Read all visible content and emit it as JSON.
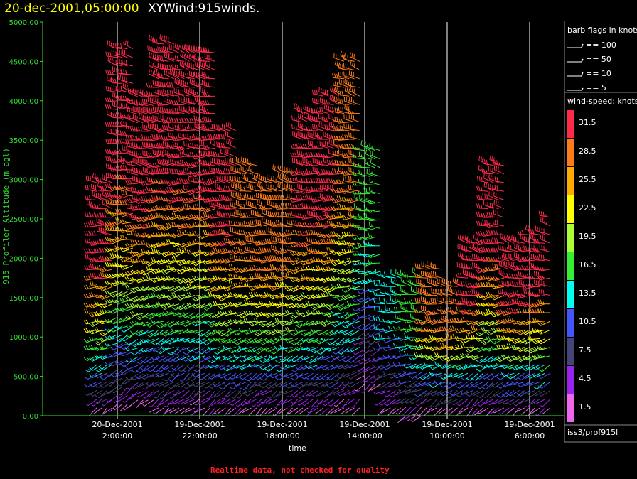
{
  "header": {
    "time_label": "20-dec-2001,05:00:00",
    "source_label": "XYWind:915winds."
  },
  "footer": {
    "note": "Realtime data, not checked for quality"
  },
  "colors": {
    "axis": "#33dd33",
    "grid": "#ffffff",
    "footer": "#ff2222",
    "title_time": "#ffff00"
  },
  "chart_data": {
    "type": "wind-barb time-height plot",
    "ylabel": "915 Profiler Altitude (m agl)",
    "xlabel": "time",
    "x_direction": "time decreases to the right",
    "ylim": [
      0,
      5000
    ],
    "y_ticks": [
      "5000.00",
      "4500.00",
      "4000.00",
      "3500.00",
      "3000.00",
      "2500.00",
      "2000.00",
      "1500.00",
      "1000.00",
      "500.00",
      "0.00"
    ],
    "x_ticks": [
      {
        "date": "20-Dec-2001",
        "time": "2:00:00"
      },
      {
        "date": "19-Dec-2001",
        "time": "22:00:00"
      },
      {
        "date": "19-Dec-2001",
        "time": "18:00:00"
      },
      {
        "date": "19-Dec-2001",
        "time": "14:00:00"
      },
      {
        "date": "19-Dec-2001",
        "time": "10:00:00"
      },
      {
        "date": "19-Dec-2001",
        "time": "6:00:00"
      }
    ],
    "x_time_range_hours": {
      "left": "20-Dec-2001 05:00:00",
      "right": "19-Dec-2001 04:00:00"
    },
    "grid": "vertical lines at each time tick",
    "barb_legend": {
      "title": "barb flags in knots",
      "entries": [
        "== 100",
        "== 50",
        "== 10",
        "== 5"
      ]
    },
    "speed_legend": {
      "title": "wind-speed: knots",
      "bins": [
        {
          "label": "31.5",
          "color": "#ff2a4a"
        },
        {
          "label": "28.5",
          "color": "#ff7a1a"
        },
        {
          "label": "25.5",
          "color": "#ffaa00"
        },
        {
          "label": "22.5",
          "color": "#ffff00"
        },
        {
          "label": "19.5",
          "color": "#aaff33"
        },
        {
          "label": "16.5",
          "color": "#33ee33"
        },
        {
          "label": "13.5",
          "color": "#00ffee"
        },
        {
          "label": "10.5",
          "color": "#4455ff"
        },
        {
          "label": "7.5",
          "color": "#444477"
        },
        {
          "label": "4.5",
          "color": "#9922ee"
        },
        {
          "label": "1.5",
          "color": "#ee66ee"
        }
      ]
    },
    "station": "iss3/prof915l",
    "profiles": [
      {
        "t_hours_before_05": 2.5,
        "top_m": 3050,
        "bottom_m": 100,
        "upper_speed_kt": 31.5
      },
      {
        "t_hours_before_05": 3.5,
        "top_m": 4750,
        "bottom_m": 150,
        "upper_speed_kt": 31.5
      },
      {
        "t_hours_before_05": 4.5,
        "top_m": 4100,
        "bottom_m": 200,
        "upper_speed_kt": 31.5
      },
      {
        "t_hours_before_05": 5.5,
        "top_m": 4750,
        "bottom_m": 100,
        "upper_speed_kt": 31.5
      },
      {
        "t_hours_before_05": 6.5,
        "top_m": 4700,
        "bottom_m": 100,
        "upper_speed_kt": 31.5
      },
      {
        "t_hours_before_05": 7.5,
        "top_m": 4700,
        "bottom_m": 100,
        "upper_speed_kt": 31.5
      },
      {
        "t_hours_before_05": 8.5,
        "top_m": 3700,
        "bottom_m": 100,
        "upper_speed_kt": 31.5
      },
      {
        "t_hours_before_05": 9.5,
        "top_m": 3200,
        "bottom_m": 100,
        "upper_speed_kt": 28.5
      },
      {
        "t_hours_before_05": 10.5,
        "top_m": 3000,
        "bottom_m": 100,
        "upper_speed_kt": 28.5
      },
      {
        "t_hours_before_05": 11.5,
        "top_m": 3100,
        "bottom_m": 100,
        "upper_speed_kt": 28.5
      },
      {
        "t_hours_before_05": 12.5,
        "top_m": 3900,
        "bottom_m": 100,
        "upper_speed_kt": 31.5
      },
      {
        "t_hours_before_05": 13.5,
        "top_m": 4100,
        "bottom_m": 100,
        "upper_speed_kt": 31.5
      },
      {
        "t_hours_before_05": 14.5,
        "top_m": 4500,
        "bottom_m": 100,
        "upper_speed_kt": 28.5
      },
      {
        "t_hours_before_05": 15.5,
        "top_m": 3400,
        "bottom_m": 400,
        "upper_speed_kt": 16.5
      },
      {
        "t_hours_before_05": 16.5,
        "top_m": 1800,
        "bottom_m": 100,
        "upper_speed_kt": 13.5
      },
      {
        "t_hours_before_05": 17.5,
        "top_m": 1800,
        "bottom_m": 0,
        "upper_speed_kt": 16.5
      },
      {
        "t_hours_before_05": 18.5,
        "top_m": 1900,
        "bottom_m": 100,
        "upper_speed_kt": 28.5
      },
      {
        "t_hours_before_05": 19.5,
        "top_m": 1700,
        "bottom_m": 100,
        "upper_speed_kt": 28.5
      },
      {
        "t_hours_before_05": 20.5,
        "top_m": 2200,
        "bottom_m": 100,
        "upper_speed_kt": 31.5
      },
      {
        "t_hours_before_05": 21.5,
        "top_m": 3200,
        "bottom_m": 100,
        "upper_speed_kt": 31.5
      },
      {
        "t_hours_before_05": 22.5,
        "top_m": 2200,
        "bottom_m": 100,
        "upper_speed_kt": 31.5
      },
      {
        "t_hours_before_05": 23.5,
        "top_m": 2400,
        "bottom_m": 100,
        "upper_speed_kt": 31.5
      },
      {
        "t_hours_before_05": 24.5,
        "top_m": 2550,
        "bottom_m": 100,
        "upper_speed_kt": 31.5
      }
    ]
  }
}
